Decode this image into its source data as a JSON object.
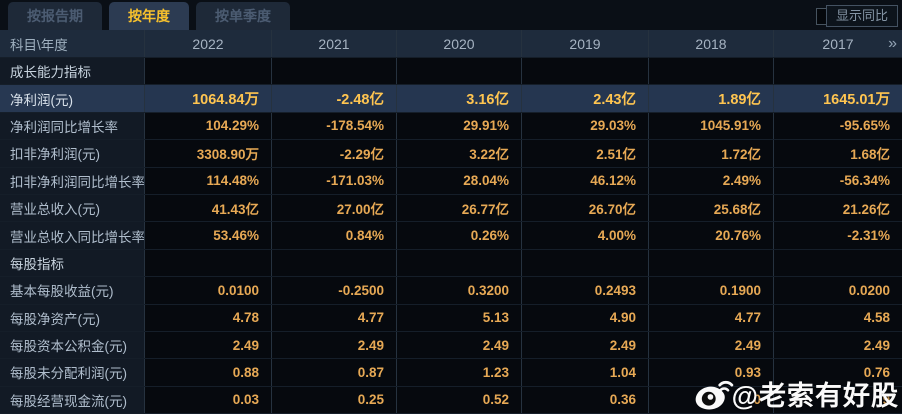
{
  "tabs": [
    {
      "label": "按报告期",
      "active": false
    },
    {
      "label": "按年度",
      "active": true
    },
    {
      "label": "按单季度",
      "active": false
    }
  ],
  "controls": {
    "compare_label": "显示同比",
    "checkbox_checked": false,
    "more_icon": "»"
  },
  "table": {
    "corner_label": "科目\\年度",
    "years": [
      "2022",
      "2021",
      "2020",
      "2019",
      "2018",
      "2017"
    ],
    "rows": [
      {
        "type": "section",
        "label": "成长能力指标",
        "values": [
          "",
          "",
          "",
          "",
          "",
          ""
        ]
      },
      {
        "type": "data",
        "label": "净利润(元)",
        "highlight": true,
        "values": [
          "1064.84万",
          "-2.48亿",
          "3.16亿",
          "2.43亿",
          "1.89亿",
          "1645.01万"
        ]
      },
      {
        "type": "data",
        "label": "净利润同比增长率",
        "values": [
          "104.29%",
          "-178.54%",
          "29.91%",
          "29.03%",
          "1045.91%",
          "-95.65%"
        ]
      },
      {
        "type": "data",
        "label": "扣非净利润(元)",
        "values": [
          "3308.90万",
          "-2.29亿",
          "3.22亿",
          "2.51亿",
          "1.72亿",
          "1.68亿"
        ]
      },
      {
        "type": "data",
        "label": "扣非净利润同比增长率",
        "values": [
          "114.48%",
          "-171.03%",
          "28.04%",
          "46.12%",
          "2.49%",
          "-56.34%"
        ]
      },
      {
        "type": "data",
        "label": "营业总收入(元)",
        "values": [
          "41.43亿",
          "27.00亿",
          "26.77亿",
          "26.70亿",
          "25.68亿",
          "21.26亿"
        ]
      },
      {
        "type": "data",
        "label": "营业总收入同比增长率",
        "values": [
          "53.46%",
          "0.84%",
          "0.26%",
          "4.00%",
          "20.76%",
          "-2.31%"
        ]
      },
      {
        "type": "section",
        "label": "每股指标",
        "values": [
          "",
          "",
          "",
          "",
          "",
          ""
        ]
      },
      {
        "type": "data",
        "label": "基本每股收益(元)",
        "values": [
          "0.0100",
          "-0.2500",
          "0.3200",
          "0.2493",
          "0.1900",
          "0.0200"
        ]
      },
      {
        "type": "data",
        "label": "每股净资产(元)",
        "values": [
          "4.78",
          "4.77",
          "5.13",
          "4.90",
          "4.77",
          "4.58"
        ]
      },
      {
        "type": "data",
        "label": "每股资本公积金(元)",
        "values": [
          "2.49",
          "2.49",
          "2.49",
          "2.49",
          "2.49",
          "2.49"
        ]
      },
      {
        "type": "data",
        "label": "每股未分配利润(元)",
        "values": [
          "0.88",
          "0.87",
          "1.23",
          "1.04",
          "0.93",
          "0.76"
        ]
      },
      {
        "type": "data",
        "label": "每股经营现金流(元)",
        "obscured_by_watermark": [
          4,
          5
        ],
        "values": [
          "0.03",
          "0.25",
          "0.52",
          "0.36",
          "0",
          "9"
        ]
      }
    ]
  },
  "watermark": {
    "handle": "@老索有好股",
    "logo": "weibo-icon"
  },
  "colors": {
    "accent_gold": "#e7a955",
    "highlight_value_gold": "#ffc550",
    "tab_active_text": "#f7c12d",
    "highlight_row_bg": "#253650",
    "header_bg": "#1e2b3c",
    "label_col_bg": "#121a25",
    "data_bg": "#06090e"
  }
}
